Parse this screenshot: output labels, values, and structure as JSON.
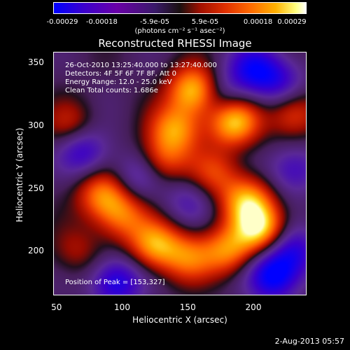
{
  "chart_data": {
    "type": "heatmap",
    "title": "Reconstructed RHESSI Image",
    "xlabel": "Heliocentric X (arcsec)",
    "ylabel": "Heliocentric Y (arcsec)",
    "xlim": [
      48,
      240
    ],
    "ylim": [
      165,
      358
    ],
    "x_ticks": [
      "50",
      "100",
      "150",
      "200"
    ],
    "y_ticks": [
      "200",
      "250",
      "300",
      "350"
    ],
    "colorbar": {
      "ticks": [
        "-0.00029",
        "-0.00018",
        "-5.9e-05",
        "5.9e-05",
        "0.00018",
        "0.00029"
      ],
      "unit": "(photons cm⁻² s⁻¹ asec⁻²)",
      "range": [
        -0.00029,
        0.00029
      ]
    },
    "blobs": [
      {
        "x": 155,
        "y": 328,
        "intensity": 1.0
      },
      {
        "x": 185,
        "y": 303,
        "intensity": 0.95
      },
      {
        "x": 140,
        "y": 297,
        "intensity": 0.75
      },
      {
        "x": 130,
        "y": 272,
        "intensity": 0.55
      },
      {
        "x": 85,
        "y": 245,
        "intensity": 0.7
      },
      {
        "x": 100,
        "y": 228,
        "intensity": 0.6
      },
      {
        "x": 125,
        "y": 205,
        "intensity": 0.8
      },
      {
        "x": 150,
        "y": 195,
        "intensity": 0.6
      },
      {
        "x": 195,
        "y": 240,
        "intensity": 0.8
      },
      {
        "x": 205,
        "y": 218,
        "intensity": 0.95
      },
      {
        "x": 180,
        "y": 200,
        "intensity": 0.7
      },
      {
        "x": 170,
        "y": 262,
        "intensity": 0.5
      },
      {
        "x": 230,
        "y": 310,
        "intensity": 0.55
      },
      {
        "x": 60,
        "y": 300,
        "intensity": 0.4
      },
      {
        "x": 65,
        "y": 200,
        "intensity": 0.3
      },
      {
        "x": 220,
        "y": 335,
        "intensity": -0.5
      },
      {
        "x": 200,
        "y": 345,
        "intensity": -0.7
      },
      {
        "x": 70,
        "y": 280,
        "intensity": -0.6
      },
      {
        "x": 95,
        "y": 175,
        "intensity": -0.75
      },
      {
        "x": 215,
        "y": 180,
        "intensity": -0.9
      },
      {
        "x": 230,
        "y": 200,
        "intensity": -0.6
      },
      {
        "x": 175,
        "y": 325,
        "intensity": -0.4
      },
      {
        "x": 112,
        "y": 260,
        "intensity": -0.45
      },
      {
        "x": 230,
        "y": 265,
        "intensity": -0.5
      },
      {
        "x": 150,
        "y": 240,
        "intensity": -0.35
      }
    ]
  },
  "info": {
    "time_range": "26-Oct-2010 13:25:40.000 to 13:27:40.000",
    "detectors": "Detectors: 4F 5F 6F 7F 8F, Att 0",
    "energy": "Energy Range: 12.0 - 25.0 keV",
    "clean": "Clean     Total counts: 1.686e",
    "peak": "Position of Peak = [153,327]"
  },
  "footer": "2-Aug-2013 05:57"
}
